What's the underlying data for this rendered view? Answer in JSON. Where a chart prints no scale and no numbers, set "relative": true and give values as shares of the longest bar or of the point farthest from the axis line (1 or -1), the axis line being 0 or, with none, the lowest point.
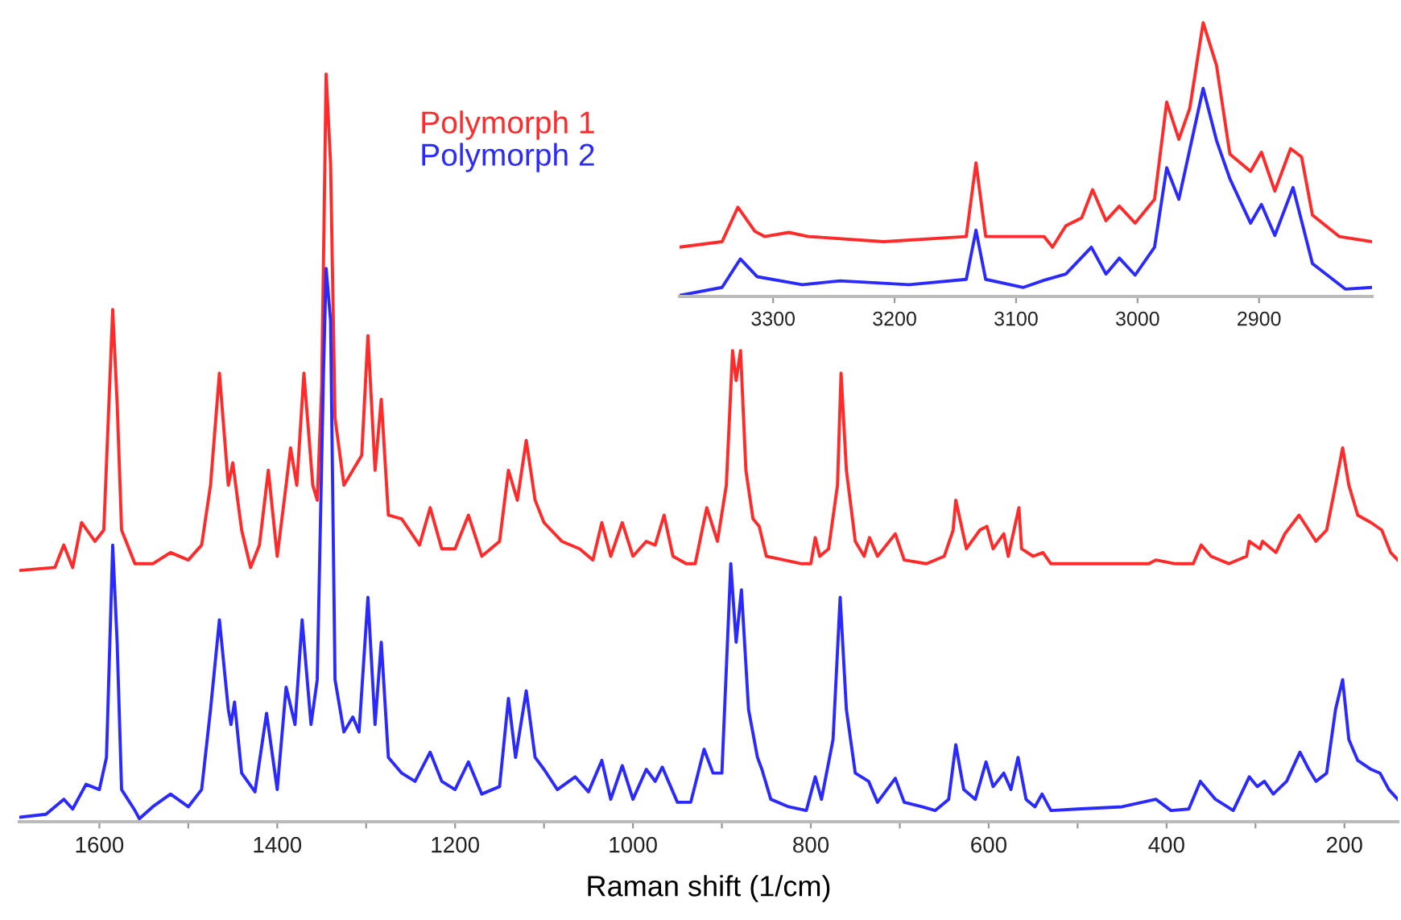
{
  "chart_data": [
    {
      "type": "line",
      "relative": true,
      "xlabel": "Raman shift (1/cm)",
      "xlim": [
        1690,
        140
      ],
      "xticks": [
        1600,
        {
          "value": 1500,
          "label": null
        },
        1400,
        {
          "value": 1300,
          "label": null
        },
        1200,
        {
          "value": 1100,
          "label": null
        },
        1000,
        {
          "value": 900,
          "label": null
        },
        800,
        {
          "value": 700,
          "label": null
        },
        600,
        {
          "value": 500,
          "label": null
        },
        400,
        {
          "value": 300,
          "label": null
        },
        200
      ],
      "legend": "top",
      "grid": false,
      "marker": "none",
      "line_style": "solid",
      "series": [
        {
          "name": "Polymorph 1",
          "color": "#ff2a2a",
          "x": [
            1690,
            1650,
            1640,
            1630,
            1620,
            1605,
            1595,
            1585,
            1580,
            1575,
            1560,
            1540,
            1520,
            1500,
            1485,
            1475,
            1465,
            1455,
            1450,
            1440,
            1430,
            1420,
            1410,
            1400,
            1390,
            1385,
            1378,
            1370,
            1360,
            1355,
            1350,
            1345,
            1340,
            1335,
            1325,
            1315,
            1305,
            1298,
            1290,
            1283,
            1275,
            1260,
            1240,
            1228,
            1215,
            1200,
            1185,
            1170,
            1150,
            1140,
            1130,
            1120,
            1110,
            1100,
            1080,
            1060,
            1045,
            1035,
            1025,
            1012,
            1000,
            985,
            975,
            965,
            955,
            940,
            930,
            917,
            905,
            895,
            888,
            884,
            879,
            873,
            865,
            858,
            850,
            830,
            810,
            800,
            795,
            790,
            780,
            770,
            766,
            760,
            750,
            740,
            734,
            725,
            705,
            695,
            670,
            650,
            640,
            637,
            625,
            610,
            602,
            595,
            583,
            578,
            566,
            563,
            550,
            539,
            530,
            500,
            460,
            420,
            412,
            390,
            370,
            361,
            350,
            330,
            310,
            307,
            295,
            292,
            277,
            267,
            251,
            240,
            232,
            220,
            210,
            202,
            195,
            185,
            170,
            158,
            148,
            140
          ],
          "values": [
            0.336,
            0.34,
            0.37,
            0.34,
            0.4,
            0.375,
            0.39,
            0.685,
            0.56,
            0.39,
            0.345,
            0.345,
            0.36,
            0.35,
            0.37,
            0.45,
            0.6,
            0.45,
            0.48,
            0.39,
            0.34,
            0.37,
            0.47,
            0.355,
            0.45,
            0.5,
            0.45,
            0.6,
            0.45,
            0.43,
            0.58,
            1.0,
            0.88,
            0.54,
            0.45,
            0.47,
            0.49,
            0.65,
            0.47,
            0.565,
            0.41,
            0.405,
            0.37,
            0.42,
            0.365,
            0.365,
            0.41,
            0.355,
            0.375,
            0.47,
            0.43,
            0.51,
            0.43,
            0.4,
            0.375,
            0.365,
            0.35,
            0.4,
            0.355,
            0.4,
            0.355,
            0.375,
            0.37,
            0.41,
            0.355,
            0.345,
            0.345,
            0.42,
            0.375,
            0.45,
            0.63,
            0.59,
            0.63,
            0.47,
            0.405,
            0.395,
            0.355,
            0.35,
            0.345,
            0.345,
            0.38,
            0.355,
            0.365,
            0.45,
            0.6,
            0.47,
            0.375,
            0.355,
            0.38,
            0.355,
            0.385,
            0.35,
            0.345,
            0.355,
            0.39,
            0.43,
            0.365,
            0.39,
            0.395,
            0.365,
            0.385,
            0.355,
            0.42,
            0.365,
            0.355,
            0.36,
            0.345,
            0.345,
            0.345,
            0.345,
            0.35,
            0.345,
            0.345,
            0.37,
            0.355,
            0.345,
            0.355,
            0.375,
            0.365,
            0.375,
            0.36,
            0.385,
            0.41,
            0.39,
            0.375,
            0.39,
            0.45,
            0.5,
            0.45,
            0.41,
            0.4,
            0.39,
            0.36,
            0.35
          ]
        },
        {
          "name": "Polymorph 2",
          "color": "#2a2aff",
          "x": [
            1690,
            1660,
            1640,
            1630,
            1615,
            1600,
            1592,
            1585,
            1580,
            1575,
            1560,
            1555,
            1540,
            1520,
            1500,
            1485,
            1475,
            1465,
            1455,
            1452,
            1448,
            1440,
            1425,
            1412,
            1400,
            1390,
            1380,
            1372,
            1362,
            1355,
            1348,
            1345,
            1340,
            1335,
            1325,
            1315,
            1308,
            1298,
            1290,
            1283,
            1275,
            1260,
            1245,
            1228,
            1215,
            1200,
            1185,
            1170,
            1150,
            1140,
            1132,
            1120,
            1110,
            1100,
            1085,
            1065,
            1050,
            1035,
            1025,
            1012,
            1000,
            985,
            975,
            967,
            950,
            935,
            920,
            910,
            900,
            890,
            884,
            878,
            870,
            860,
            855,
            845,
            825,
            805,
            795,
            788,
            775,
            767,
            760,
            750,
            735,
            725,
            705,
            695,
            675,
            660,
            645,
            637,
            628,
            615,
            603,
            595,
            583,
            575,
            567,
            558,
            548,
            540,
            530,
            500,
            450,
            412,
            395,
            375,
            362,
            345,
            325,
            307,
            298,
            290,
            280,
            265,
            250,
            240,
            232,
            220,
            210,
            202,
            195,
            185,
            170,
            160,
            150,
            140
          ],
          "values": [
            0.006,
            0.01,
            0.03,
            0.017,
            0.05,
            0.043,
            0.086,
            0.37,
            0.24,
            0.043,
            0.015,
            0.004,
            0.02,
            0.037,
            0.02,
            0.043,
            0.15,
            0.27,
            0.15,
            0.13,
            0.16,
            0.065,
            0.04,
            0.145,
            0.043,
            0.18,
            0.13,
            0.27,
            0.13,
            0.19,
            0.6,
            0.74,
            0.67,
            0.19,
            0.12,
            0.14,
            0.12,
            0.3,
            0.13,
            0.24,
            0.086,
            0.065,
            0.054,
            0.093,
            0.054,
            0.043,
            0.08,
            0.037,
            0.047,
            0.165,
            0.086,
            0.175,
            0.086,
            0.07,
            0.043,
            0.06,
            0.04,
            0.082,
            0.03,
            0.075,
            0.03,
            0.07,
            0.054,
            0.073,
            0.026,
            0.026,
            0.097,
            0.065,
            0.065,
            0.345,
            0.24,
            0.31,
            0.15,
            0.086,
            0.07,
            0.03,
            0.02,
            0.015,
            0.06,
            0.03,
            0.11,
            0.3,
            0.15,
            0.065,
            0.054,
            0.026,
            0.058,
            0.026,
            0.02,
            0.015,
            0.03,
            0.103,
            0.043,
            0.03,
            0.08,
            0.047,
            0.065,
            0.043,
            0.086,
            0.03,
            0.02,
            0.037,
            0.015,
            0.017,
            0.02,
            0.03,
            0.015,
            0.017,
            0.054,
            0.03,
            0.015,
            0.06,
            0.047,
            0.054,
            0.037,
            0.054,
            0.093,
            0.07,
            0.054,
            0.065,
            0.15,
            0.19,
            0.11,
            0.082,
            0.07,
            0.065,
            0.043,
            0.03
          ]
        }
      ]
    },
    {
      "type": "line",
      "relative": true,
      "xlim": [
        3377,
        2807
      ],
      "xticks": [
        3300,
        3200,
        3100,
        3000,
        2900
      ],
      "grid": false,
      "marker": "none",
      "line_style": "solid",
      "series": [
        {
          "color": "#ff2a2a",
          "x": [
            3377,
            3342,
            3329,
            3315,
            3307,
            3287,
            3271,
            3209,
            3141,
            3133,
            3125,
            3077,
            3070,
            3059,
            3046,
            3037,
            3026,
            3015,
            3002,
            2986,
            2976,
            2966,
            2957,
            2946,
            2935,
            2924,
            2907,
            2898,
            2887,
            2874,
            2865,
            2856,
            2834,
            2807
          ],
          "values": [
            0.18,
            0.2,
            0.326,
            0.238,
            0.219,
            0.234,
            0.219,
            0.2,
            0.219,
            0.488,
            0.219,
            0.219,
            0.18,
            0.258,
            0.287,
            0.39,
            0.277,
            0.33,
            0.268,
            0.355,
            0.71,
            0.574,
            0.6875,
            1.0,
            0.844,
            0.52,
            0.457,
            0.527,
            0.385,
            0.54,
            0.51,
            0.297,
            0.219,
            0.2
          ]
        },
        {
          "color": "#2a2aff",
          "x": [
            3377,
            3342,
            3327,
            3313,
            3276,
            3245,
            3188,
            3141,
            3133,
            3125,
            3094,
            3077,
            3059,
            3038,
            3026,
            3015,
            3002,
            2986,
            2976,
            2966,
            2946,
            2935,
            2924,
            2907,
            2898,
            2887,
            2872,
            2856,
            2829,
            2807
          ],
          "values": [
            0.004,
            0.033,
            0.137,
            0.072,
            0.043,
            0.057,
            0.043,
            0.0625,
            0.242,
            0.0625,
            0.033,
            0.059,
            0.082,
            0.18,
            0.082,
            0.14,
            0.078,
            0.18,
            0.47,
            0.355,
            0.76,
            0.57,
            0.43,
            0.268,
            0.336,
            0.223,
            0.398,
            0.12,
            0.027,
            0.033
          ]
        }
      ]
    }
  ]
}
